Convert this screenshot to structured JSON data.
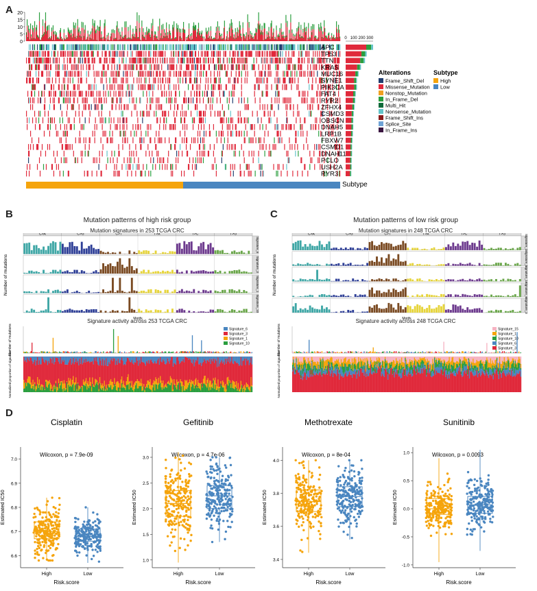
{
  "panels": {
    "A": "A",
    "B": "B",
    "C": "C",
    "D": "D"
  },
  "colors": {
    "high": "#f5a40c",
    "low": "#4a86c0",
    "frame_shift_del": "#1f3d6e",
    "missense": "#e0293b",
    "nonstop": "#f0a020",
    "in_frame_del": "#2a9e3e",
    "multi_hit": "#0f6b3a",
    "nonsense": "#62c3c9",
    "frame_shift_ins": "#8a1a1a",
    "splice_site": "#6fa3d6",
    "in_frame_ins": "#3a1540"
  },
  "oncoplot": {
    "tmb_ticks": [
      "20",
      "15",
      "10",
      "5",
      "0"
    ],
    "bar_ticks": [
      "0",
      "100",
      "200",
      "300"
    ],
    "genes": [
      "APC",
      "TP53",
      "TTN",
      "KRAS",
      "MUC16",
      "SYNE1",
      "PIK3CA",
      "FAT4",
      "RYR2",
      "ZFHX4",
      "CSMD3",
      "OBSCN",
      "DNAH5",
      "LRP1B",
      "FBXW7",
      "CSMD1",
      "DNAH11",
      "PCLO",
      "USH2A",
      "RYR3"
    ],
    "gene_counts": [
      340,
      260,
      240,
      190,
      160,
      140,
      140,
      125,
      120,
      110,
      100,
      95,
      95,
      90,
      85,
      80,
      80,
      75,
      75,
      70
    ],
    "subtype_label": "Subtype",
    "legend_alterations_title": "Alterations",
    "legend_alterations": [
      {
        "label": "Frame_Shift_Del",
        "color": "#1f3d6e"
      },
      {
        "label": "Missense_Mutation",
        "color": "#e0293b"
      },
      {
        "label": "Nonstop_Mutation",
        "color": "#f0a020"
      },
      {
        "label": "In_Frame_Del",
        "color": "#2a9e3e"
      },
      {
        "label": "Multi_Hit",
        "color": "#0f6b3a"
      },
      {
        "label": "Nonsense_Mutation",
        "color": "#62c3c9"
      },
      {
        "label": "Frame_Shift_Ins",
        "color": "#8a1a1a"
      },
      {
        "label": "Splice_Site",
        "color": "#6fa3d6"
      },
      {
        "label": "In_Frame_Ins",
        "color": "#3a1540"
      }
    ],
    "legend_subtype_title": "Subtype",
    "legend_subtype": [
      {
        "label": "High",
        "color": "#f5a40c"
      },
      {
        "label": "Low",
        "color": "#4a86c0"
      }
    ]
  },
  "panelB": {
    "title": "Mutation patterns of high risk group",
    "subtitle": "Mutation signatures in 253 TCGA CRC",
    "ylabel": "Number of mutations",
    "xlabel": "Motifs",
    "substitutions": [
      "C>A",
      "C>G",
      "C>T",
      "T>A",
      "T>C",
      "T>G"
    ],
    "signatures": [
      "Signature_6",
      "Signature_3",
      "Signature_1",
      "Signature_10"
    ],
    "activity_title": "Signature activity across 253 TCGA CRC",
    "activity_ylabel": "Number of mutations",
    "proportion_ylabel": "Normalized proportion of signature",
    "legend": [
      "Signature_6",
      "Signature_3",
      "Signature_1",
      "Signature_10"
    ],
    "legend_colors": [
      "#4a86c0",
      "#e0293b",
      "#f5a40c",
      "#2a9e3e"
    ]
  },
  "panelC": {
    "title": "Mutation patterns of low risk group",
    "subtitle": "Mutation signatures in 248 TCGA CRC",
    "ylabel": "Number of mutations",
    "xlabel": "Motifs",
    "substitutions": [
      "C>A",
      "C>G",
      "C>T",
      "T>A",
      "T>C",
      "T>G"
    ],
    "signatures": [
      "Signature_15",
      "Signature_1",
      "Signature_10",
      "Signature_6",
      "Signature_3"
    ],
    "activity_title": "Signature activity across 248 TCGA CRC",
    "activity_ylabel": "Number of mutations",
    "proportion_ylabel": "Normalized proportion of signature",
    "legend": [
      "Signature_15",
      "Signature_1",
      "Signature_10",
      "Signature_6",
      "Signature_3"
    ],
    "legend_colors": [
      "#f6b3c2",
      "#f5a40c",
      "#2a9e3e",
      "#4a86c0",
      "#e0293b"
    ]
  },
  "chart_data": [
    {
      "type": "box",
      "title": "Cisplatin",
      "annotation": "Wilcoxon, p = 7.9e-09",
      "xlabel": "Risk.score",
      "ylabel": "Estimated IC50",
      "categories": [
        "High",
        "Low"
      ],
      "yticks": [
        6.6,
        6.7,
        6.8,
        6.9,
        7.0
      ],
      "ylim": [
        6.55,
        7.05
      ],
      "boxes": [
        {
          "group": "High",
          "q1": 6.67,
          "median": 6.7,
          "q3": 6.74,
          "whisker_low": 6.58,
          "whisker_high": 6.84
        },
        {
          "group": "Low",
          "q1": 6.66,
          "median": 6.68,
          "q3": 6.71,
          "whisker_low": 6.57,
          "whisker_high": 6.8
        }
      ]
    },
    {
      "type": "box",
      "title": "Gefitinib",
      "annotation": "Wilcoxon, p = 4.7e-06",
      "xlabel": "Risk.score",
      "ylabel": "Estimated IC50",
      "categories": [
        "High",
        "Low"
      ],
      "yticks": [
        1.0,
        1.5,
        2.0,
        2.5,
        3.0
      ],
      "ylim": [
        0.85,
        3.2
      ],
      "boxes": [
        {
          "group": "High",
          "q1": 1.85,
          "median": 2.1,
          "q3": 2.35,
          "whisker_low": 0.95,
          "whisker_high": 3.1
        },
        {
          "group": "Low",
          "q1": 2.0,
          "median": 2.25,
          "q3": 2.45,
          "whisker_low": 1.35,
          "whisker_high": 3.0
        }
      ]
    },
    {
      "type": "box",
      "title": "Methotrexate",
      "annotation": "Wilcoxon, p = 8e-04",
      "xlabel": "Risk.score",
      "ylabel": "Estimated IC50",
      "categories": [
        "High",
        "Low"
      ],
      "yticks": [
        3.4,
        3.6,
        3.8,
        4.0
      ],
      "ylim": [
        3.35,
        4.08
      ],
      "boxes": [
        {
          "group": "High",
          "q1": 3.69,
          "median": 3.75,
          "q3": 3.82,
          "whisker_low": 3.44,
          "whisker_high": 4.0
        },
        {
          "group": "Low",
          "q1": 3.72,
          "median": 3.78,
          "q3": 3.84,
          "whisker_low": 3.52,
          "whisker_high": 4.0
        }
      ]
    },
    {
      "type": "box",
      "title": "Sunitinib",
      "annotation": "Wilcoxon, p = 0.0093",
      "xlabel": "Risk.score",
      "ylabel": "Estimated IC50",
      "categories": [
        "High",
        "Low"
      ],
      "yticks": [
        -1.0,
        -0.5,
        0.0,
        0.5,
        1.0
      ],
      "ylim": [
        -1.05,
        1.1
      ],
      "boxes": [
        {
          "group": "High",
          "q1": -0.1,
          "median": 0.0,
          "q3": 0.18,
          "whisker_low": -0.95,
          "whisker_high": 0.9
        },
        {
          "group": "Low",
          "q1": -0.08,
          "median": 0.07,
          "q3": 0.22,
          "whisker_low": -0.75,
          "whisker_high": 1.05
        }
      ]
    }
  ]
}
